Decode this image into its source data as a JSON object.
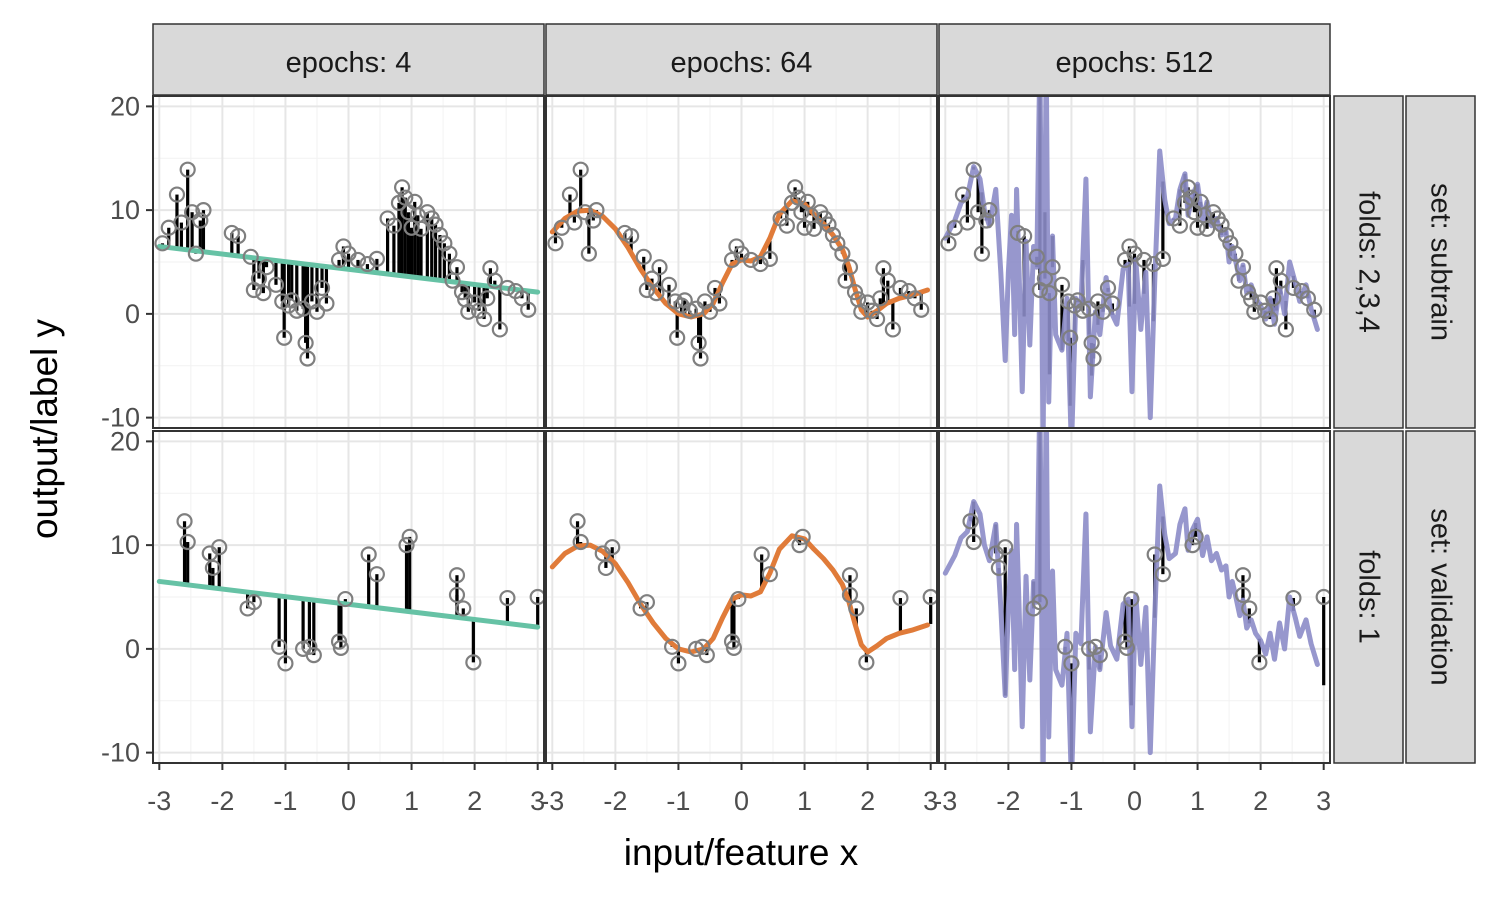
{
  "chart_data": {
    "type": "scatter",
    "xlabel": "input/feature x",
    "ylabel": "output/label y",
    "xlim": [
      -3.1,
      3.1
    ],
    "ylim": [
      -11,
      21
    ],
    "x_ticks": [
      -3,
      -2,
      -1,
      0,
      1,
      2,
      3
    ],
    "y_ticks": [
      -10,
      0,
      10,
      20
    ],
    "grid": true,
    "columns": [
      {
        "label": "epochs: 4",
        "epochs": 4,
        "color": "#66c2a5"
      },
      {
        "label": "epochs: 64",
        "epochs": 64,
        "color": "#e07b39"
      },
      {
        "label": "epochs: 512",
        "epochs": 512,
        "color": "#8c8cc8"
      }
    ],
    "rows": [
      {
        "folds_label": "folds: 2,3,4",
        "set_label": "set: subtrain"
      },
      {
        "folds_label": "folds: 1",
        "set_label": "set: validation"
      }
    ],
    "subtrain_points": [
      [
        -2.95,
        6.8
      ],
      [
        -2.85,
        8.3
      ],
      [
        -2.72,
        11.5
      ],
      [
        -2.65,
        8.8
      ],
      [
        -2.55,
        13.9
      ],
      [
        -2.48,
        9.8
      ],
      [
        -2.42,
        5.8
      ],
      [
        -2.35,
        9.0
      ],
      [
        -2.3,
        10.0
      ],
      [
        -1.85,
        7.8
      ],
      [
        -1.75,
        7.5
      ],
      [
        -1.55,
        5.5
      ],
      [
        -1.5,
        2.3
      ],
      [
        -1.42,
        3.4
      ],
      [
        -1.35,
        2.0
      ],
      [
        -1.3,
        4.5
      ],
      [
        -1.15,
        2.8
      ],
      [
        -1.05,
        1.2
      ],
      [
        -1.02,
        -2.3
      ],
      [
        -0.95,
        0.8
      ],
      [
        -0.9,
        1.3
      ],
      [
        -0.82,
        0.3
      ],
      [
        -0.72,
        0.5
      ],
      [
        -0.68,
        -2.8
      ],
      [
        -0.65,
        -4.3
      ],
      [
        -0.58,
        1.2
      ],
      [
        -0.5,
        0.2
      ],
      [
        -0.42,
        2.5
      ],
      [
        -0.35,
        1.0
      ],
      [
        -0.15,
        5.2
      ],
      [
        -0.08,
        6.5
      ],
      [
        0.0,
        5.8
      ],
      [
        0.15,
        5.2
      ],
      [
        0.3,
        4.8
      ],
      [
        0.45,
        5.3
      ],
      [
        0.62,
        9.2
      ],
      [
        0.72,
        8.5
      ],
      [
        0.8,
        10.7
      ],
      [
        0.85,
        12.2
      ],
      [
        0.9,
        11.2
      ],
      [
        0.95,
        9.8
      ],
      [
        1.0,
        8.3
      ],
      [
        1.05,
        10.8
      ],
      [
        1.1,
        9.5
      ],
      [
        1.15,
        8.2
      ],
      [
        1.25,
        9.8
      ],
      [
        1.32,
        9.2
      ],
      [
        1.38,
        8.6
      ],
      [
        1.45,
        7.6
      ],
      [
        1.52,
        6.8
      ],
      [
        1.6,
        5.8
      ],
      [
        1.65,
        3.2
      ],
      [
        1.72,
        4.5
      ],
      [
        1.8,
        2.1
      ],
      [
        1.85,
        1.4
      ],
      [
        1.9,
        0.2
      ],
      [
        2.0,
        1.1
      ],
      [
        2.07,
        0.3
      ],
      [
        2.15,
        -0.5
      ],
      [
        2.2,
        1.5
      ],
      [
        2.25,
        4.4
      ],
      [
        2.32,
        3.2
      ],
      [
        2.4,
        -1.5
      ],
      [
        2.52,
        2.5
      ],
      [
        2.65,
        2.2
      ],
      [
        2.75,
        1.5
      ],
      [
        2.85,
        0.4
      ]
    ],
    "validation_points": [
      [
        -2.6,
        12.3
      ],
      [
        -2.55,
        10.3
      ],
      [
        -2.2,
        9.2
      ],
      [
        -2.15,
        7.8
      ],
      [
        -2.05,
        9.8
      ],
      [
        -1.6,
        3.9
      ],
      [
        -1.5,
        4.5
      ],
      [
        -1.1,
        0.2
      ],
      [
        -1.0,
        -1.4
      ],
      [
        -0.72,
        0.0
      ],
      [
        -0.62,
        0.2
      ],
      [
        -0.55,
        -0.6
      ],
      [
        -0.15,
        0.7
      ],
      [
        -0.12,
        0.1
      ],
      [
        -0.05,
        4.8
      ],
      [
        0.32,
        9.1
      ],
      [
        0.45,
        7.2
      ],
      [
        0.92,
        10.0
      ],
      [
        0.97,
        10.8
      ],
      [
        1.72,
        7.1
      ],
      [
        1.72,
        5.2
      ],
      [
        1.82,
        3.9
      ],
      [
        1.98,
        -1.3
      ],
      [
        2.52,
        4.9
      ],
      [
        3.0,
        5.0
      ]
    ],
    "fit_epochs_4": [
      [
        -3.0,
        6.5
      ],
      [
        3.0,
        2.1
      ]
    ],
    "fit_epochs_64": [
      [
        -3.0,
        7.9
      ],
      [
        -2.8,
        9.2
      ],
      [
        -2.6,
        9.9
      ],
      [
        -2.4,
        10.0
      ],
      [
        -2.2,
        9.4
      ],
      [
        -2.0,
        8.2
      ],
      [
        -1.8,
        6.4
      ],
      [
        -1.6,
        4.3
      ],
      [
        -1.4,
        2.5
      ],
      [
        -1.2,
        1.0
      ],
      [
        -1.0,
        0.0
      ],
      [
        -0.8,
        -0.3
      ],
      [
        -0.6,
        0.0
      ],
      [
        -0.45,
        1.0
      ],
      [
        -0.3,
        3.0
      ],
      [
        -0.15,
        4.8
      ],
      [
        0.0,
        5.2
      ],
      [
        0.15,
        5.1
      ],
      [
        0.3,
        5.5
      ],
      [
        0.45,
        7.3
      ],
      [
        0.6,
        9.6
      ],
      [
        0.8,
        10.9
      ],
      [
        1.0,
        10.6
      ],
      [
        1.15,
        9.6
      ],
      [
        1.3,
        8.7
      ],
      [
        1.45,
        7.6
      ],
      [
        1.6,
        6.2
      ],
      [
        1.7,
        4.6
      ],
      [
        1.8,
        2.4
      ],
      [
        1.9,
        0.4
      ],
      [
        2.0,
        -0.3
      ],
      [
        2.15,
        0.3
      ],
      [
        2.3,
        1.0
      ],
      [
        2.5,
        1.5
      ],
      [
        2.7,
        1.8
      ],
      [
        2.95,
        2.3
      ]
    ],
    "fit_epochs_512": [
      [
        -3.0,
        7.3
      ],
      [
        -2.85,
        9.0
      ],
      [
        -2.75,
        10.7
      ],
      [
        -2.65,
        11.3
      ],
      [
        -2.55,
        14.2
      ],
      [
        -2.45,
        13.0
      ],
      [
        -2.38,
        10.0
      ],
      [
        -2.3,
        8.5
      ],
      [
        -2.2,
        12.0
      ],
      [
        -2.12,
        4.0
      ],
      [
        -2.05,
        -4.5
      ],
      [
        -2.0,
        4.0
      ],
      [
        -1.95,
        9.5
      ],
      [
        -1.9,
        -2.0
      ],
      [
        -1.87,
        12.0
      ],
      [
        -1.83,
        4.0
      ],
      [
        -1.78,
        -7.5
      ],
      [
        -1.72,
        7.0
      ],
      [
        -1.66,
        -3.0
      ],
      [
        -1.6,
        6.5
      ],
      [
        -1.55,
        4.5
      ],
      [
        -1.5,
        25.0
      ],
      [
        -1.45,
        -13.0
      ],
      [
        -1.4,
        25.0
      ],
      [
        -1.36,
        -8.5
      ],
      [
        -1.3,
        7.5
      ],
      [
        -1.25,
        -2.0
      ],
      [
        -1.15,
        -3.5
      ],
      [
        -1.07,
        1.5
      ],
      [
        -1.0,
        -13.0
      ],
      [
        -0.93,
        1.5
      ],
      [
        -0.85,
        0.5
      ],
      [
        -0.77,
        13.0
      ],
      [
        -0.7,
        -8.0
      ],
      [
        -0.62,
        0.2
      ],
      [
        -0.55,
        -2.0
      ],
      [
        -0.45,
        3.5
      ],
      [
        -0.38,
        0.3
      ],
      [
        -0.28,
        -1.0
      ],
      [
        -0.18,
        4.3
      ],
      [
        -0.1,
        4.8
      ],
      [
        -0.04,
        -7.5
      ],
      [
        0.02,
        5.2
      ],
      [
        0.1,
        -1.5
      ],
      [
        0.18,
        4.0
      ],
      [
        0.25,
        -10.0
      ],
      [
        0.32,
        3.0
      ],
      [
        0.4,
        15.7
      ],
      [
        0.48,
        11.0
      ],
      [
        0.55,
        8.7
      ],
      [
        0.65,
        9.2
      ],
      [
        0.72,
        12.0
      ],
      [
        0.8,
        13.5
      ],
      [
        0.85,
        9.5
      ],
      [
        0.92,
        11.5
      ],
      [
        1.0,
        12.5
      ],
      [
        1.08,
        9.0
      ],
      [
        1.15,
        10.8
      ],
      [
        1.22,
        8.5
      ],
      [
        1.3,
        9.2
      ],
      [
        1.38,
        7.6
      ],
      [
        1.45,
        8.0
      ],
      [
        1.5,
        5.0
      ],
      [
        1.55,
        6.5
      ],
      [
        1.6,
        5.2
      ],
      [
        1.67,
        3.2
      ],
      [
        1.72,
        4.7
      ],
      [
        1.78,
        2.0
      ],
      [
        1.85,
        2.8
      ],
      [
        1.92,
        1.5
      ],
      [
        2.0,
        0.8
      ],
      [
        2.08,
        -0.5
      ],
      [
        2.15,
        1.5
      ],
      [
        2.22,
        -1.0
      ],
      [
        2.3,
        2.5
      ],
      [
        2.38,
        0.0
      ],
      [
        2.46,
        5.0
      ],
      [
        2.55,
        3.0
      ],
      [
        2.62,
        1.2
      ],
      [
        2.72,
        2.8
      ],
      [
        2.8,
        0.5
      ],
      [
        2.9,
        -1.5
      ]
    ]
  }
}
